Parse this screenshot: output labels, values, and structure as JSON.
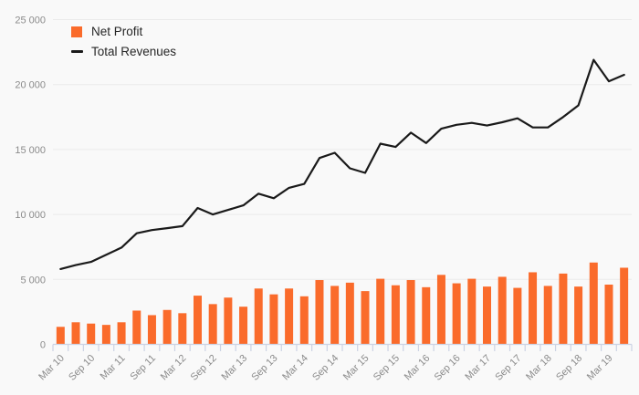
{
  "chart_data": {
    "type": "combo",
    "title": "",
    "x_tick_labels": [
      "Mar 10",
      "Sep 10",
      "Mar 11",
      "Sep 11",
      "Mar 12",
      "Sep 12",
      "Mar 13",
      "Sep 13",
      "Mar 14",
      "Sep 14",
      "Mar 15",
      "Sep 15",
      "Mar 16",
      "Sep 16",
      "Mar 17",
      "Sep 17",
      "Mar 18",
      "Sep 18",
      "Mar 19"
    ],
    "x_label_every_n_bars": 2,
    "bars_total": 38,
    "y_ticks": [
      0,
      5000,
      10000,
      15000,
      20000,
      25000
    ],
    "y_tick_labels": [
      "0",
      "5 000",
      "10 000",
      "15 000",
      "20 000",
      "25 000"
    ],
    "ylim": [
      0,
      25000
    ],
    "grid": "horizontal",
    "legend_position": "top-left",
    "series": [
      {
        "name": "Net Profit",
        "type": "bar",
        "color": "#fa6b2b",
        "values": [
          1350,
          1700,
          1600,
          1500,
          1700,
          2600,
          2250,
          2650,
          2400,
          3750,
          3100,
          3600,
          2900,
          4300,
          3850,
          4300,
          3700,
          4950,
          4500,
          4750,
          4100,
          5050,
          4550,
          4950,
          4400,
          5350,
          4700,
          5050,
          4450,
          5200,
          4350,
          5550,
          4500,
          5450,
          4450,
          6300,
          4600,
          5900
        ]
      },
      {
        "name": "Total Revenues",
        "type": "line",
        "color": "#1a1a1a",
        "values": [
          5800,
          6100,
          6350,
          6900,
          7450,
          8550,
          8800,
          8950,
          9100,
          10500,
          10000,
          10350,
          10700,
          11600,
          11250,
          12050,
          12350,
          14350,
          14750,
          13550,
          13200,
          15450,
          15200,
          16300,
          15500,
          16600,
          16900,
          17050,
          16850,
          17100,
          17400,
          16700,
          16700,
          17500,
          18400,
          21900,
          20250,
          20750
        ]
      }
    ],
    "colors": {
      "background": "#f9f9f9",
      "gridline": "#eaeaea",
      "axis": "#ccd3e4",
      "tick_label": "#8b8b8b"
    }
  }
}
